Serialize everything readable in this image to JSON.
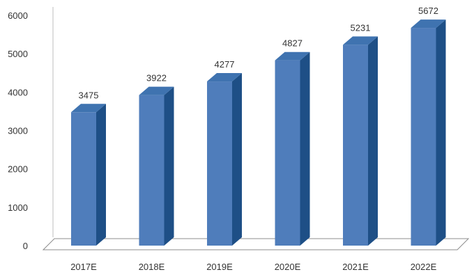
{
  "chart_data": {
    "type": "bar",
    "style": "3d-column",
    "categories": [
      "2017E",
      "2018E",
      "2019E",
      "2020E",
      "2021E",
      "2022E"
    ],
    "values": [
      3475,
      3922,
      4277,
      4827,
      5231,
      5672
    ],
    "data_labels": [
      "3475",
      "3922",
      "4277",
      "4827",
      "5231",
      "5672"
    ],
    "yticks": [
      "0",
      "1000",
      "2000",
      "3000",
      "4000",
      "5000",
      "6000"
    ],
    "ylim": [
      0,
      6000
    ],
    "title": "",
    "xlabel": "",
    "ylabel": "",
    "grid": false,
    "legend": "none",
    "colors": {
      "bar_front": "#4f7dbb",
      "bar_side": "#1e4f86",
      "bar_top": "#3f73b0",
      "floor": "#ffffff",
      "floor_edge": "#8c8c8c"
    }
  }
}
